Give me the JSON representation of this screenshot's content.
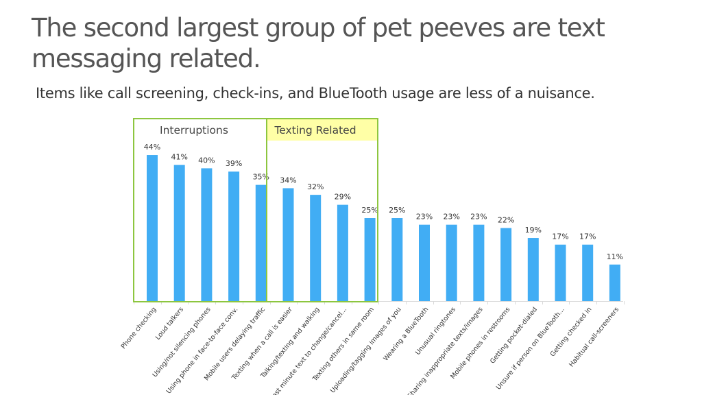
{
  "slide": {
    "title_line1": "The second largest group of pet peeves are text",
    "title_line2": "messaging related.",
    "subtitle": "Items like call screening, check-ins, and BlueTooth usage are less of a nuisance."
  },
  "chart_data": {
    "type": "bar",
    "categories": [
      "Phone checking",
      "Loud talkers",
      "Using/not silencing phones",
      "Using phone in face-to-face conv.",
      "Mobile users delaying traffic",
      "Texting when a call is easier",
      "Talking/texting and walking",
      "Last minute text to change/cancel...",
      "Texting others in same room",
      "Uploading/tagging images of you",
      "Wearing a BlueTooth",
      "Unusual ringtones",
      "Sharing inappropriate texts/images",
      "Mobile phones in restrooms",
      "Getting pocket-dialed",
      "Unsure if person on BlueTooth...",
      "Getting checked in",
      "Habitual call-screeners"
    ],
    "values": [
      44,
      41,
      40,
      39,
      35,
      34,
      32,
      29,
      25,
      25,
      23,
      23,
      23,
      22,
      19,
      17,
      17,
      11
    ],
    "data_labels": [
      "44%",
      "41%",
      "40%",
      "39%",
      "35%",
      "34%",
      "32%",
      "29%",
      "25%",
      "25%",
      "23%",
      "23%",
      "23%",
      "22%",
      "19%",
      "17%",
      "17%",
      "11%"
    ],
    "ylim": [
      0,
      50
    ],
    "bar_color": "#41adf4",
    "groups": [
      {
        "label": "Interruptions",
        "start": 0,
        "end": 4,
        "border_color": "#8dc63f",
        "fill": "none"
      },
      {
        "label": "Texting Related",
        "start": 5,
        "end": 8,
        "border_color": "#8dc63f",
        "fill": "#ffffa6"
      }
    ]
  }
}
